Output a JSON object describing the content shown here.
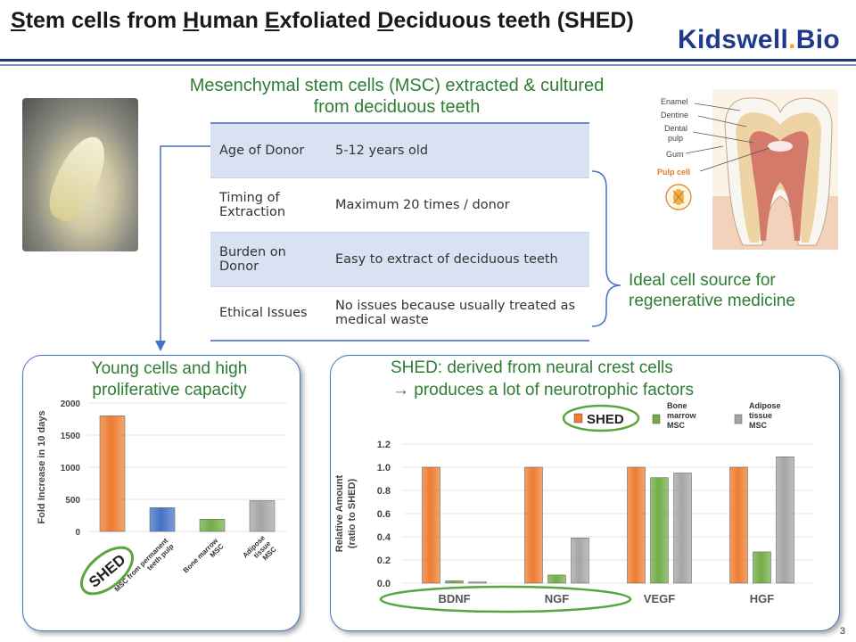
{
  "header": {
    "title_parts": [
      {
        "text": "S",
        "u": true
      },
      {
        "text": "tem cells from ",
        "u": false
      },
      {
        "text": "H",
        "u": true
      },
      {
        "text": "uman ",
        "u": false
      },
      {
        "text": "E",
        "u": true
      },
      {
        "text": "xfoliated ",
        "u": false
      },
      {
        "text": "D",
        "u": true
      },
      {
        "text": "eciduous teeth (SHED)",
        "u": false
      }
    ],
    "logo_main": "Kidswell",
    "logo_dot": ".",
    "logo_end": "Bio"
  },
  "msc_title": "Mesenchymal stem cells (MSC) extracted & cultured from deciduous teeth",
  "table": {
    "rows": [
      {
        "key": "Age of Donor",
        "value": "5-12 years old"
      },
      {
        "key": "Timing of Extraction",
        "value": "Maximum 20 times / donor"
      },
      {
        "key": "Burden on Donor",
        "value": "Easy to extract of deciduous teeth"
      },
      {
        "key": "Ethical Issues",
        "value": "No issues because usually treated as medical waste"
      }
    ]
  },
  "ideal_text": "Ideal cell source for regenerative medicine",
  "tooth_labels": {
    "enamel": "Enamel",
    "dentine": "Dentine",
    "pulp1": "Dental",
    "pulp2": "pulp",
    "gum": "Gum",
    "pulp_cell": "Pulp cell"
  },
  "left_panel": {
    "title": "Young cells and high proliferative capacity"
  },
  "right_panel": {
    "title_line1": "SHED: derived from neural crest cells",
    "title_line2": "→ produces a lot of neurotrophic factors"
  },
  "chart_data": [
    {
      "type": "bar",
      "ylabel": "Fold Increase in 10 days",
      "ylim": [
        0,
        2000
      ],
      "yticks": [
        0,
        500,
        1000,
        1500,
        2000
      ],
      "categories": [
        "SHED",
        "MSC from permanent teeth pulp",
        "Bone marrow MSC",
        "Adipose tissue MSC"
      ],
      "category_lines": [
        [
          "SHED"
        ],
        [
          "MSC from permanent",
          "teeth pulp"
        ],
        [
          "Bone marrow",
          "MSC"
        ],
        [
          "Adipose",
          "tissue",
          "MSC"
        ]
      ],
      "values": [
        1800,
        370,
        190,
        480
      ],
      "colors": [
        "#ed7d31",
        "#4472c4",
        "#70ad47",
        "#a5a5a5"
      ]
    },
    {
      "type": "bar",
      "ylabel_line1": "Relative Amount",
      "ylabel_line2": "(ratio to SHED)",
      "ylim": [
        0,
        1.2
      ],
      "yticks": [
        "0.0",
        "0.2",
        "0.4",
        "0.6",
        "0.8",
        "1.0",
        "1.2"
      ],
      "categories": [
        "BDNF",
        "NGF",
        "VEGF",
        "HGF"
      ],
      "series": [
        {
          "name": "SHED",
          "values": [
            1.0,
            1.0,
            1.0,
            1.0
          ],
          "color": "#ed7d31"
        },
        {
          "name": "Bone marrow MSC",
          "name_lines": [
            "Bone",
            "marrow",
            "MSC"
          ],
          "values": [
            0.02,
            0.07,
            0.91,
            0.27
          ],
          "color": "#70ad47"
        },
        {
          "name": "Adipose tissue MSC",
          "name_lines": [
            "Adipose",
            "tissue",
            "MSC"
          ],
          "values": [
            0.01,
            0.39,
            0.95,
            1.09
          ],
          "color": "#a5a5a5"
        }
      ],
      "legend_position": "top"
    }
  ],
  "page_number": "3"
}
